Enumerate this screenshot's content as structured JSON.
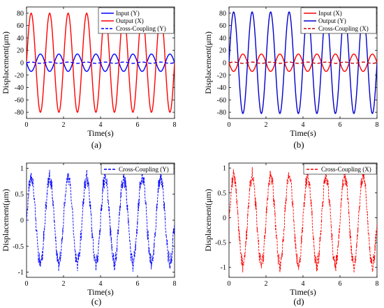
{
  "chart_data": [
    {
      "panel": "a",
      "type": "line",
      "caption": "(a)",
      "xlabel": "Time(s)",
      "ylabel": "Displacement(μm)",
      "xlim": [
        0,
        8
      ],
      "ylim": [
        -90,
        90
      ],
      "xticks": [
        0,
        2,
        4,
        6,
        8
      ],
      "yticks": [
        -80,
        -60,
        -40,
        -20,
        0,
        20,
        40,
        60,
        80
      ],
      "legend_position": "top-right",
      "series": [
        {
          "name": "Input (Y)",
          "color": "#0000ff",
          "style": "solid",
          "waveform": "sine",
          "amplitude": 14,
          "frequency_hz": 1.0,
          "phase_deg": 180
        },
        {
          "name": "Output (X)",
          "color": "#ff0000",
          "style": "solid",
          "waveform": "sine",
          "amplitude": 80,
          "frequency_hz": 1.0,
          "phase_deg": 0
        },
        {
          "name": "Cross-Coupling (Y)",
          "color": "#0000ff",
          "style": "dashed",
          "waveform": "sine",
          "amplitude": 1,
          "frequency_hz": 1.0,
          "phase_deg": 0
        }
      ]
    },
    {
      "panel": "b",
      "type": "line",
      "caption": "(b)",
      "xlabel": "Time(s)",
      "ylabel": "Displacement(μm)",
      "xlim": [
        0,
        8
      ],
      "ylim": [
        -90,
        90
      ],
      "xticks": [
        0,
        2,
        4,
        6,
        8
      ],
      "yticks": [
        -80,
        -60,
        -40,
        -20,
        0,
        20,
        40,
        60,
        80
      ],
      "legend_position": "top-right",
      "series": [
        {
          "name": "Input (X)",
          "color": "#ff0000",
          "style": "solid",
          "waveform": "sine",
          "amplitude": 14,
          "frequency_hz": 1.0,
          "phase_deg": 180
        },
        {
          "name": "Output (Y)",
          "color": "#0000cc",
          "style": "solid",
          "waveform": "sine",
          "amplitude": 82,
          "frequency_hz": 1.0,
          "phase_deg": 0
        },
        {
          "name": "Cross-Coupling (X)",
          "color": "#cc0000",
          "style": "dashed",
          "waveform": "sine",
          "amplitude": 1,
          "frequency_hz": 1.0,
          "phase_deg": 0
        }
      ]
    },
    {
      "panel": "c",
      "type": "line",
      "caption": "(c)",
      "xlabel": "Time(s)",
      "ylabel": "Displacement(μm)",
      "xlim": [
        0,
        8
      ],
      "ylim": [
        -1.1,
        1.1
      ],
      "xticks": [
        0,
        2,
        4,
        6,
        8
      ],
      "yticks": [
        -1,
        -0.5,
        0,
        0.5,
        1
      ],
      "legend_position": "top-right",
      "series": [
        {
          "name": "Cross-Coupling (Y)",
          "color": "#0000ff",
          "style": "dashed",
          "waveform": "noisy-sine",
          "amplitude": 0.82,
          "frequency_hz": 1.0,
          "phase_deg": 0,
          "noise": 0.12
        }
      ]
    },
    {
      "panel": "d",
      "type": "line",
      "caption": "(d)",
      "xlabel": "Time(s)",
      "ylabel": "Displacement(μm)",
      "xlim": [
        0,
        8
      ],
      "ylim": [
        -1.2,
        1.1
      ],
      "xticks": [
        0,
        2,
        4,
        6,
        8
      ],
      "yticks": [
        -1,
        -0.5,
        0,
        0.5,
        1
      ],
      "legend_position": "top-right",
      "series": [
        {
          "name": "Cross-Coupling (X)",
          "color": "#ff0000",
          "style": "dashed",
          "waveform": "noisy-sine",
          "amplitude": 0.9,
          "frequency_hz": 1.0,
          "phase_deg": 0,
          "offset": -0.05,
          "noise": 0.12
        }
      ]
    }
  ]
}
